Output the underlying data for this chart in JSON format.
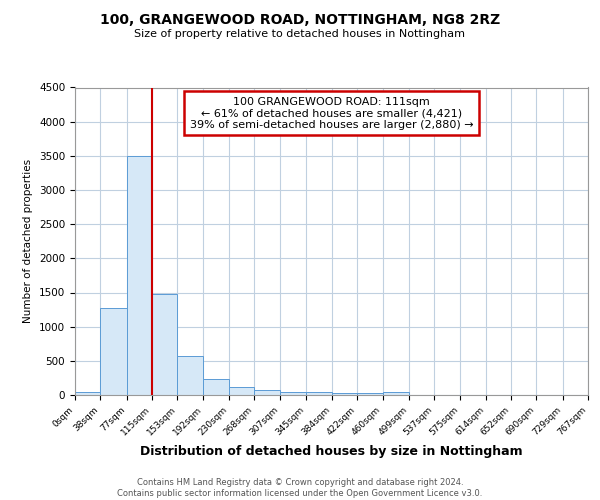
{
  "title": "100, GRANGEWOOD ROAD, NOTTINGHAM, NG8 2RZ",
  "subtitle": "Size of property relative to detached houses in Nottingham",
  "xlabel": "Distribution of detached houses by size in Nottingham",
  "ylabel": "Number of detached properties",
  "bin_edges": [
    0,
    38,
    77,
    115,
    153,
    192,
    230,
    268,
    307,
    345,
    384,
    422,
    460,
    499,
    537,
    575,
    614,
    652,
    690,
    729,
    767
  ],
  "counts": [
    50,
    1270,
    3500,
    1480,
    570,
    240,
    120,
    80,
    50,
    40,
    35,
    35,
    50,
    0,
    0,
    0,
    0,
    0,
    0,
    0
  ],
  "bar_color": "#d6e8f7",
  "bar_edge_color": "#5b9bd5",
  "vline_x": 115,
  "vline_color": "#cc0000",
  "annotation_line1": "100 GRANGEWOOD ROAD: 111sqm",
  "annotation_line2": "← 61% of detached houses are smaller (4,421)",
  "annotation_line3": "39% of semi-detached houses are larger (2,880) →",
  "annotation_box_color": "white",
  "annotation_box_edge_color": "#cc0000",
  "ylim": [
    0,
    4500
  ],
  "yticks": [
    0,
    500,
    1000,
    1500,
    2000,
    2500,
    3000,
    3500,
    4000,
    4500
  ],
  "footer_text": "Contains HM Land Registry data © Crown copyright and database right 2024.\nContains public sector information licensed under the Open Government Licence v3.0.",
  "background_color": "#ffffff",
  "grid_color": "#c0d0e0"
}
